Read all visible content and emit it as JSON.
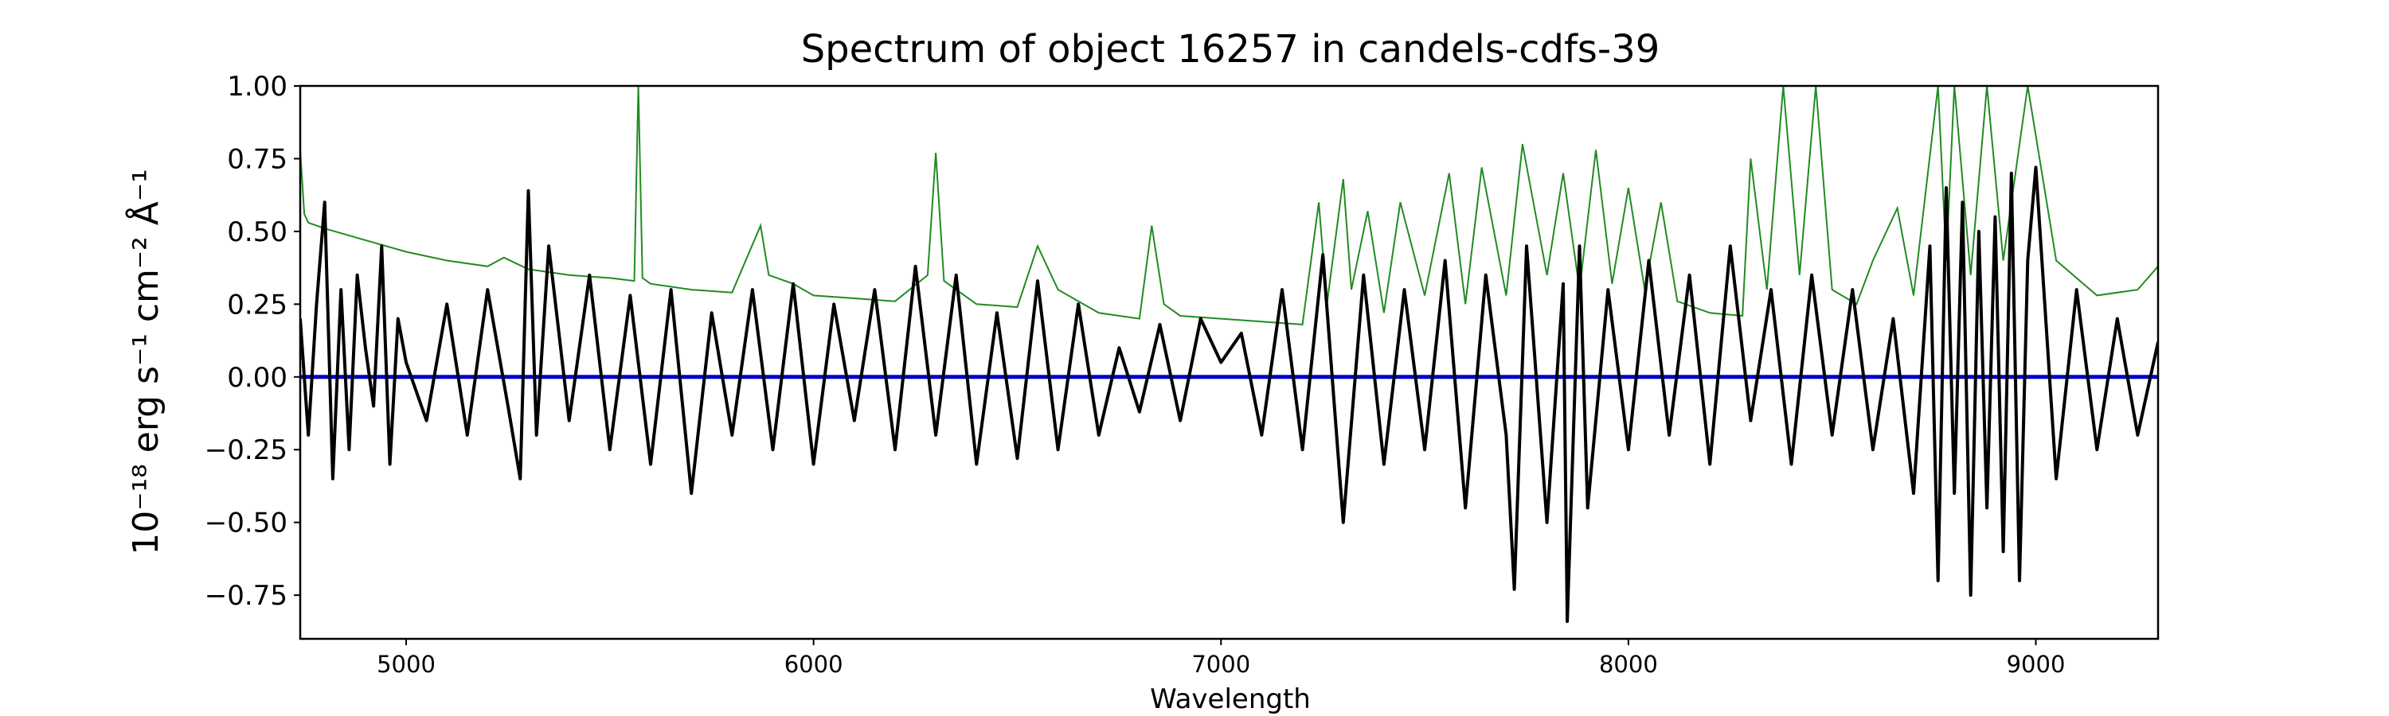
{
  "chart_data": {
    "type": "line",
    "title": "Spectrum of object 16257 in candels-cdfs-39",
    "xlabel": "Wavelength",
    "ylabel": "10⁻¹⁸ erg s⁻¹ cm⁻² Å⁻¹",
    "xlim": [
      4740,
      9300
    ],
    "ylim": [
      -0.9,
      1.0
    ],
    "xticks": [
      5000,
      6000,
      7000,
      8000,
      9000
    ],
    "yticks": [
      1.0,
      0.75,
      0.5,
      0.25,
      0.0,
      -0.25,
      -0.5,
      -0.75
    ],
    "xtick_labels": [
      "5000",
      "6000",
      "7000",
      "8000",
      "9000"
    ],
    "ytick_labels": [
      "1.00",
      "0.75",
      "0.50",
      "0.25",
      "0.00",
      "−0.25",
      "−0.50",
      "−0.75"
    ],
    "grid": false,
    "series": [
      {
        "role": "noise",
        "color": "#228b22",
        "x": [
          4740,
          4750,
          4760,
          4800,
          4900,
          5000,
          5100,
          5200,
          5240,
          5300,
          5400,
          5500,
          5560,
          5570,
          5580,
          5600,
          5700,
          5800,
          5870,
          5890,
          5950,
          6000,
          6100,
          6200,
          6280,
          6300,
          6320,
          6400,
          6500,
          6550,
          6600,
          6700,
          6800,
          6830,
          6860,
          6900,
          7000,
          7100,
          7200,
          7240,
          7260,
          7300,
          7320,
          7360,
          7400,
          7440,
          7500,
          7560,
          7600,
          7640,
          7700,
          7740,
          7800,
          7840,
          7880,
          7920,
          7960,
          8000,
          8040,
          8080,
          8120,
          8200,
          8280,
          8300,
          8340,
          8380,
          8420,
          8460,
          8500,
          8560,
          8600,
          8660,
          8700,
          8760,
          8780,
          8800,
          8840,
          8880,
          8920,
          8980,
          9050,
          9150,
          9250,
          9300
        ],
        "y": [
          0.78,
          0.56,
          0.53,
          0.51,
          0.47,
          0.43,
          0.4,
          0.38,
          0.41,
          0.37,
          0.35,
          0.34,
          0.33,
          1.0,
          0.34,
          0.32,
          0.3,
          0.29,
          0.52,
          0.35,
          0.32,
          0.28,
          0.27,
          0.26,
          0.35,
          0.77,
          0.33,
          0.25,
          0.24,
          0.45,
          0.3,
          0.22,
          0.2,
          0.52,
          0.25,
          0.21,
          0.2,
          0.19,
          0.18,
          0.6,
          0.25,
          0.68,
          0.3,
          0.57,
          0.22,
          0.6,
          0.28,
          0.7,
          0.25,
          0.72,
          0.28,
          0.8,
          0.35,
          0.7,
          0.3,
          0.78,
          0.32,
          0.65,
          0.3,
          0.6,
          0.26,
          0.22,
          0.21,
          0.75,
          0.3,
          1.0,
          0.35,
          1.0,
          0.3,
          0.25,
          0.4,
          0.58,
          0.28,
          1.0,
          0.4,
          1.0,
          0.35,
          1.0,
          0.4,
          1.0,
          0.4,
          0.28,
          0.3,
          0.38
        ]
      },
      {
        "role": "model",
        "color": "#0000cd",
        "x": [
          4740,
          9300
        ],
        "y": [
          0.0,
          0.0
        ]
      },
      {
        "role": "spectrum",
        "color": "#000000",
        "x": [
          4740,
          4760,
          4780,
          4800,
          4820,
          4840,
          4860,
          4880,
          4900,
          4920,
          4940,
          4960,
          4980,
          5000,
          5050,
          5100,
          5150,
          5200,
          5250,
          5280,
          5300,
          5320,
          5350,
          5400,
          5450,
          5500,
          5550,
          5600,
          5650,
          5700,
          5750,
          5800,
          5850,
          5900,
          5950,
          6000,
          6050,
          6100,
          6150,
          6200,
          6250,
          6300,
          6350,
          6400,
          6450,
          6500,
          6550,
          6600,
          6650,
          6700,
          6750,
          6800,
          6850,
          6900,
          6950,
          7000,
          7050,
          7100,
          7150,
          7200,
          7250,
          7300,
          7350,
          7400,
          7450,
          7500,
          7550,
          7600,
          7650,
          7700,
          7720,
          7750,
          7800,
          7840,
          7850,
          7880,
          7900,
          7950,
          8000,
          8050,
          8100,
          8150,
          8200,
          8250,
          8300,
          8350,
          8400,
          8450,
          8500,
          8550,
          8600,
          8650,
          8700,
          8740,
          8760,
          8780,
          8800,
          8820,
          8840,
          8860,
          8880,
          8900,
          8920,
          8940,
          8960,
          8980,
          9000,
          9050,
          9100,
          9150,
          9200,
          9250,
          9300
        ],
        "y": [
          0.2,
          -0.2,
          0.25,
          0.6,
          -0.35,
          0.3,
          -0.25,
          0.35,
          0.1,
          -0.1,
          0.45,
          -0.3,
          0.2,
          0.05,
          -0.15,
          0.25,
          -0.2,
          0.3,
          -0.1,
          -0.35,
          0.64,
          -0.2,
          0.45,
          -0.15,
          0.35,
          -0.25,
          0.28,
          -0.3,
          0.3,
          -0.4,
          0.22,
          -0.2,
          0.3,
          -0.25,
          0.32,
          -0.3,
          0.25,
          -0.15,
          0.3,
          -0.25,
          0.38,
          -0.2,
          0.35,
          -0.3,
          0.22,
          -0.28,
          0.33,
          -0.25,
          0.25,
          -0.2,
          0.1,
          -0.12,
          0.18,
          -0.15,
          0.2,
          0.05,
          0.15,
          -0.2,
          0.3,
          -0.25,
          0.42,
          -0.5,
          0.35,
          -0.3,
          0.3,
          -0.25,
          0.4,
          -0.45,
          0.35,
          -0.2,
          -0.73,
          0.45,
          -0.5,
          0.32,
          -0.84,
          0.45,
          -0.45,
          0.3,
          -0.25,
          0.4,
          -0.2,
          0.35,
          -0.3,
          0.45,
          -0.15,
          0.3,
          -0.3,
          0.35,
          -0.2,
          0.3,
          -0.25,
          0.2,
          -0.4,
          0.45,
          -0.7,
          0.65,
          -0.4,
          0.6,
          -0.75,
          0.5,
          -0.45,
          0.55,
          -0.6,
          0.7,
          -0.7,
          0.4,
          0.72,
          -0.35,
          0.3,
          -0.25,
          0.2,
          -0.2,
          0.12
        ]
      }
    ]
  }
}
